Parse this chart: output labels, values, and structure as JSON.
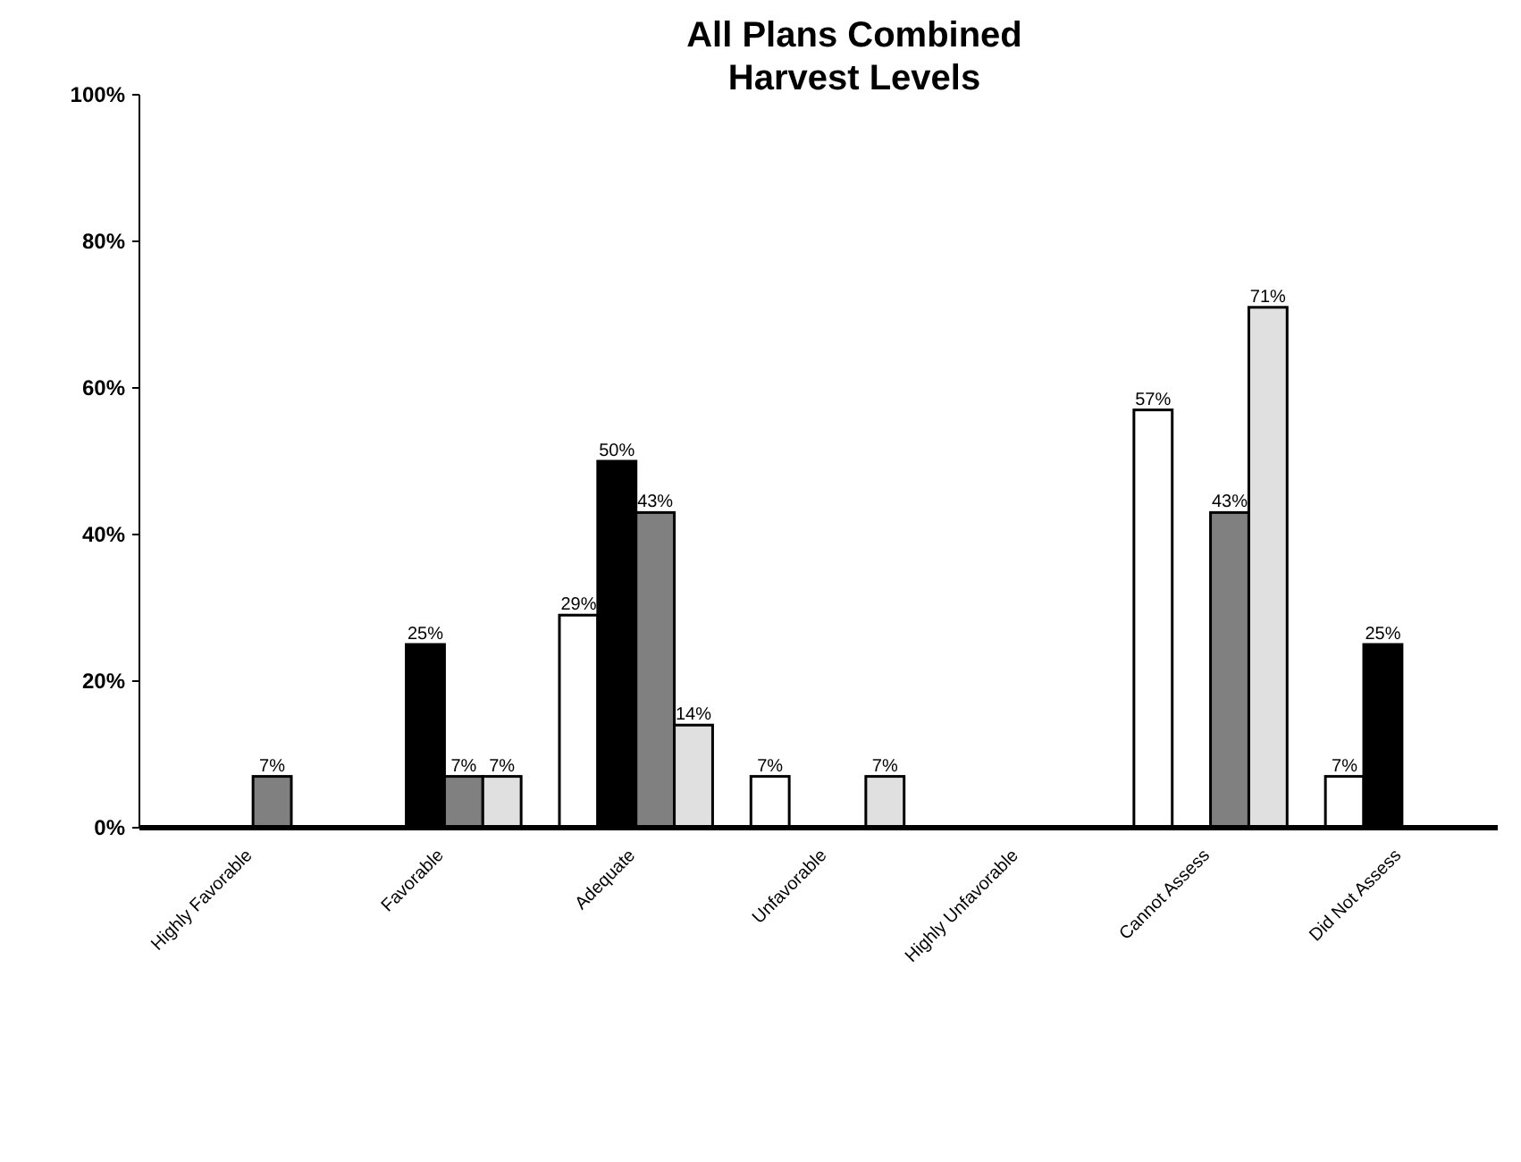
{
  "chart_data": {
    "type": "bar",
    "title": "All Plans Combined\nHarvest Levels",
    "categories": [
      "Highly Favorable",
      "Favorable",
      "Adequate",
      "Unfavorable",
      "Highly Unfavorable",
      "Cannot Assess",
      "Did Not Assess"
    ],
    "series": [
      {
        "color": "#ffffff",
        "values": [
          null,
          null,
          29,
          7,
          null,
          57,
          7
        ],
        "value_labels": [
          null,
          null,
          "29%",
          "7%",
          null,
          "57%",
          "7%"
        ]
      },
      {
        "color": "#000000",
        "values": [
          null,
          25,
          50,
          null,
          null,
          null,
          25
        ],
        "value_labels": [
          null,
          "25%",
          "50%",
          null,
          null,
          null,
          "25%"
        ]
      },
      {
        "color": "#808080",
        "values": [
          7,
          7,
          43,
          null,
          null,
          43,
          null
        ],
        "value_labels": [
          "7%",
          "7%",
          "43%",
          null,
          null,
          "43%",
          null
        ]
      },
      {
        "color": "#e0e0e0",
        "values": [
          null,
          7,
          14,
          7,
          null,
          71,
          null
        ],
        "value_labels": [
          null,
          "7%",
          "14%",
          "7%",
          null,
          "71%",
          null
        ]
      }
    ],
    "ylim": [
      0,
      100
    ],
    "yticks": [
      {
        "value": 0,
        "label": "0%"
      },
      {
        "value": 20,
        "label": "20%"
      },
      {
        "value": 40,
        "label": "40%"
      },
      {
        "value": 60,
        "label": "60%"
      },
      {
        "value": 80,
        "label": "80%"
      },
      {
        "value": 100,
        "label": "100%"
      }
    ],
    "grid": false
  }
}
